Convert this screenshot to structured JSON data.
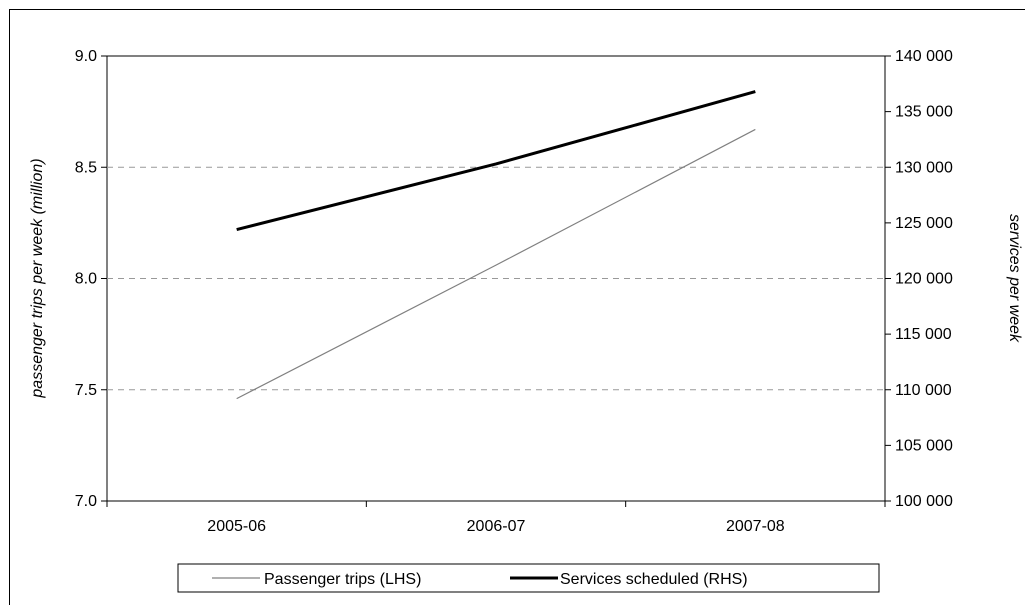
{
  "chart_data": {
    "type": "line",
    "categories": [
      "2005-06",
      "2006-07",
      "2007-08"
    ],
    "series": [
      {
        "name": "Passenger trips (LHS)",
        "axis": "left",
        "color": "#808080",
        "values": [
          7.46,
          8.06,
          8.67
        ]
      },
      {
        "name": "Services scheduled (RHS)",
        "axis": "right",
        "color": "#000000",
        "values": [
          124400,
          130300,
          136800
        ]
      }
    ],
    "ylabel_left": "passenger trips per week (million)",
    "ylabel_right": "services per week",
    "ylim_left": [
      7.0,
      9.0
    ],
    "yticks_left": [
      "7.0",
      "7.5",
      "8.0",
      "8.5",
      "9.0"
    ],
    "ylim_right": [
      100000,
      140000
    ],
    "yticks_right": [
      "100 000",
      "105 000",
      "110 000",
      "115 000",
      "120 000",
      "125 000",
      "130 000",
      "135 000",
      "140 000"
    ],
    "grid": "horizontal dashed",
    "legend_position": "bottom"
  }
}
